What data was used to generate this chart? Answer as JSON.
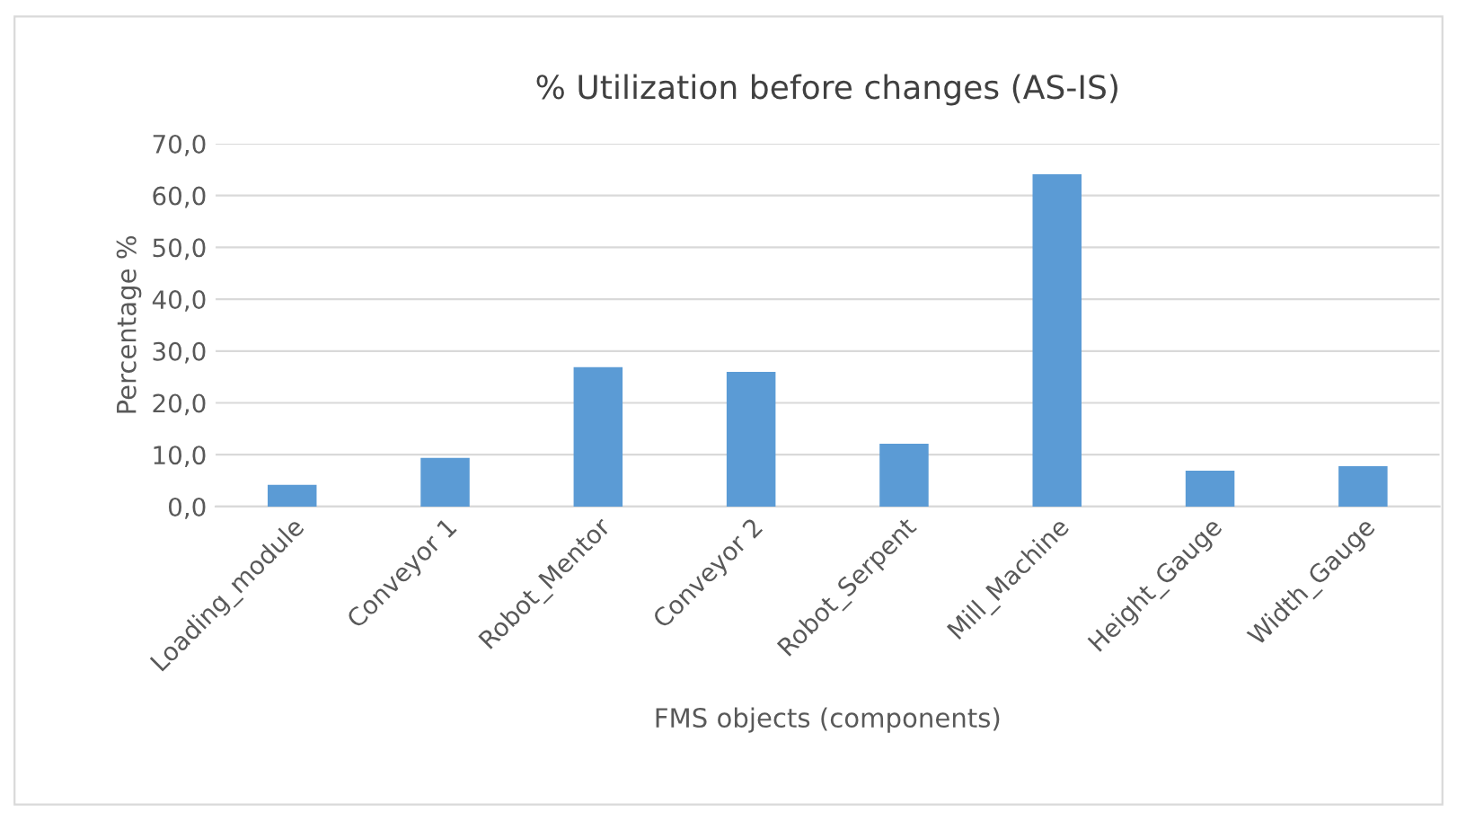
{
  "chart_data": {
    "type": "bar",
    "title": "% Utilization before changes (AS-IS)",
    "xlabel": "FMS objects (components)",
    "ylabel": "Percentage %",
    "categories": [
      "Loading_module",
      "Conveyor 1",
      "Robot_Mentor",
      "Conveyor 2",
      "Robot_Serpent",
      "Mill_Machine",
      "Height_Gauge",
      "Width_Gauge"
    ],
    "values": [
      4.2,
      9.4,
      26.9,
      26.0,
      12.1,
      64.1,
      6.9,
      7.8
    ],
    "color": "#5b9bd5",
    "ylim": [
      0,
      70
    ],
    "yticks": [
      {
        "value": 0,
        "label": "0,0"
      },
      {
        "value": 10,
        "label": "10,0"
      },
      {
        "value": 20,
        "label": "20,0"
      },
      {
        "value": 30,
        "label": "30,0"
      },
      {
        "value": 40,
        "label": "40,0"
      },
      {
        "value": 50,
        "label": "50,0"
      },
      {
        "value": 60,
        "label": "60,0"
      },
      {
        "value": 70,
        "label": "70,0"
      }
    ],
    "grid": "y"
  }
}
